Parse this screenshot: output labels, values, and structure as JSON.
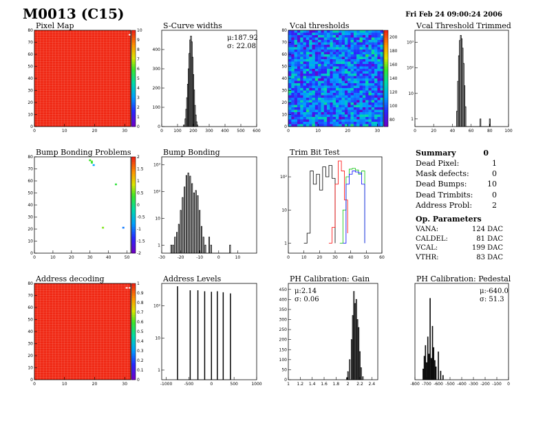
{
  "header": {
    "title": "M0013 (C15)",
    "date": "Fri Feb 24 09:00:24 2006"
  },
  "colors": {
    "map_red": "#f02c1c",
    "line": "#000000",
    "trim_red": "#ff0000",
    "trim_green": "#00c000",
    "trim_blue": "#0000ff"
  },
  "summary": {
    "title": "Summary",
    "value": "0",
    "rows": [
      {
        "label": "Dead Pixel:",
        "value": "1"
      },
      {
        "label": "Mask defects:",
        "value": "0"
      },
      {
        "label": "Dead Bumps:",
        "value": "10"
      },
      {
        "label": "Dead Trimbits:",
        "value": "0"
      },
      {
        "label": "Address Probl:",
        "value": "2"
      }
    ]
  },
  "op_params": {
    "title": "Op. Parameters",
    "rows": [
      {
        "label": "VANA:",
        "value": "124 DAC"
      },
      {
        "label": "CALDEL:",
        "value": "81 DAC"
      },
      {
        "label": "VCAL:",
        "value": "199 DAC"
      },
      {
        "label": "VTHR:",
        "value": "83 DAC"
      }
    ]
  },
  "chart_data": [
    {
      "id": "pixel-map",
      "type": "heatmap",
      "title": "Pixel Map",
      "xticks": [
        "0",
        "10",
        "20",
        "30"
      ],
      "yticks": [
        "0",
        "10",
        "20",
        "30",
        "40",
        "50",
        "60",
        "70",
        "80"
      ],
      "zticks": [
        "0",
        "1",
        "2",
        "3",
        "4",
        "5",
        "6",
        "7",
        "8",
        "9",
        "10"
      ],
      "xlim": [
        0,
        32
      ],
      "ylim": [
        0,
        80
      ],
      "zlim": [
        0,
        10
      ],
      "uniform_z": 10,
      "special_cells": [
        {
          "x": 32,
          "y": 76,
          "z": 0
        }
      ]
    },
    {
      "id": "scurve-widths",
      "type": "bar",
      "title": "S-Curve widths",
      "stats": [
        "μ:187.92",
        "σ: 22.08"
      ],
      "xticks": [
        "0",
        "100",
        "200",
        "300",
        "400",
        "500",
        "600"
      ],
      "yticks": [
        "0",
        "100",
        "200",
        "300",
        "400"
      ],
      "xlim": [
        0,
        600
      ],
      "ylim": [
        0,
        500
      ],
      "bins": [
        [
          140,
          8
        ],
        [
          150,
          40
        ],
        [
          155,
          90
        ],
        [
          160,
          150
        ],
        [
          165,
          220
        ],
        [
          170,
          300
        ],
        [
          175,
          380
        ],
        [
          180,
          450
        ],
        [
          185,
          470
        ],
        [
          190,
          440
        ],
        [
          195,
          360
        ],
        [
          200,
          270
        ],
        [
          205,
          190
        ],
        [
          210,
          110
        ],
        [
          215,
          60
        ],
        [
          220,
          25
        ],
        [
          225,
          8
        ]
      ]
    },
    {
      "id": "vcal-thresholds",
      "type": "heatmap",
      "title": "Vcal thresholds",
      "xticks": [
        "0",
        "10",
        "20",
        "30"
      ],
      "yticks": [
        "0",
        "10",
        "20",
        "30",
        "40",
        "50",
        "60",
        "70",
        "80"
      ],
      "zticks": [
        "80",
        "100",
        "120",
        "140",
        "160",
        "180",
        "200"
      ],
      "xlim": [
        0,
        32
      ],
      "ylim": [
        0,
        80
      ],
      "zlim": [
        70,
        210
      ],
      "mean_z": 105,
      "special_cells": [
        {
          "x": 32,
          "y": 76,
          "z": 210
        }
      ]
    },
    {
      "id": "vcal-threshold-trimmed",
      "type": "bar",
      "log_y": true,
      "title": "Vcal Threshold Trimmed",
      "xticks": [
        "0",
        "20",
        "40",
        "60",
        "80",
        "100"
      ],
      "yticks": [
        "1",
        "10",
        "10²",
        "10³"
      ],
      "xlim": [
        0,
        100
      ],
      "ylim": [
        0.5,
        3000
      ],
      "bins": [
        [
          45,
          2
        ],
        [
          46,
          30
        ],
        [
          47,
          300
        ],
        [
          48,
          1200
        ],
        [
          49,
          1900
        ],
        [
          50,
          1400
        ],
        [
          51,
          600
        ],
        [
          52,
          150
        ],
        [
          53,
          20
        ],
        [
          54,
          3
        ],
        [
          70,
          1
        ],
        [
          80,
          1
        ]
      ]
    },
    {
      "id": "bump-bonding-problems",
      "type": "heatmap",
      "title": "Bump Bonding Problems",
      "xticks": [
        "0",
        "10",
        "20",
        "30",
        "40",
        "50"
      ],
      "yticks": [
        "0",
        "10",
        "20",
        "30",
        "40",
        "50",
        "60",
        "70",
        "80"
      ],
      "zticks": [
        "-2",
        "-1.5",
        "-1",
        "-0.5",
        "0",
        "0.5",
        "1",
        "1.5",
        "2"
      ],
      "xlim": [
        0,
        52
      ],
      "ylim": [
        0,
        80
      ],
      "zlim": [
        -2,
        2
      ],
      "points": [
        {
          "x": 30,
          "y": 77,
          "z": 0.4
        },
        {
          "x": 31,
          "y": 76,
          "z": 0.5
        },
        {
          "x": 31,
          "y": 75,
          "z": 0.3
        },
        {
          "x": 32,
          "y": 73,
          "z": -0.8
        },
        {
          "x": 44,
          "y": 57,
          "z": 0.3
        },
        {
          "x": 37,
          "y": 21,
          "z": 0.6
        },
        {
          "x": 48,
          "y": 21,
          "z": -1.0
        }
      ]
    },
    {
      "id": "bump-bonding",
      "type": "bar",
      "log_y": true,
      "title": "Bump Bonding",
      "xticks": [
        "-30",
        "-20",
        "-10",
        "0",
        "10"
      ],
      "yticks": [
        "1",
        "10",
        "10²",
        "10³"
      ],
      "xlim": [
        -30,
        20
      ],
      "ylim": [
        0.5,
        2000
      ],
      "bins": [
        [
          -25,
          1
        ],
        [
          -24,
          1
        ],
        [
          -23,
          2
        ],
        [
          -22,
          3
        ],
        [
          -21,
          6
        ],
        [
          -20,
          20
        ],
        [
          -19,
          60
        ],
        [
          -18,
          150
        ],
        [
          -17,
          400
        ],
        [
          -16,
          500
        ],
        [
          -15,
          380
        ],
        [
          -14,
          200
        ],
        [
          -13,
          90
        ],
        [
          -12,
          110
        ],
        [
          -11,
          70
        ],
        [
          -10,
          20
        ],
        [
          -9,
          5
        ],
        [
          -8,
          2
        ],
        [
          -7,
          1
        ],
        [
          -5,
          2
        ],
        [
          -4,
          1
        ],
        [
          6,
          1
        ]
      ]
    },
    {
      "id": "trim-bit-test",
      "type": "line",
      "log_y": true,
      "title": "Trim Bit Test",
      "xticks": [
        "0",
        "10",
        "20",
        "30",
        "40",
        "50",
        "60"
      ],
      "yticks": [
        "1",
        "10",
        "10²"
      ],
      "xlim": [
        0,
        60
      ],
      "ylim": [
        0.5,
        400
      ],
      "series": [
        {
          "color": "#000000",
          "points": [
            [
              10,
              1
            ],
            [
              12,
              2
            ],
            [
              14,
              150
            ],
            [
              16,
              60
            ],
            [
              18,
              120
            ],
            [
              20,
              40
            ],
            [
              22,
              200
            ],
            [
              24,
              100
            ],
            [
              26,
              220
            ],
            [
              28,
              90
            ],
            [
              30,
              1
            ]
          ]
        },
        {
          "color": "#ff0000",
          "points": [
            [
              26,
              1
            ],
            [
              28,
              3
            ],
            [
              30,
              60
            ],
            [
              32,
              300
            ],
            [
              34,
              150
            ],
            [
              36,
              20
            ],
            [
              38,
              2
            ]
          ]
        },
        {
          "color": "#00c000",
          "points": [
            [
              33,
              1
            ],
            [
              35,
              10
            ],
            [
              37,
              100
            ],
            [
              39,
              170
            ],
            [
              41,
              180
            ],
            [
              43,
              160
            ],
            [
              45,
              120
            ],
            [
              47,
              150
            ],
            [
              49,
              1
            ]
          ]
        },
        {
          "color": "#0000ff",
          "points": [
            [
              35,
              1
            ],
            [
              37,
              60
            ],
            [
              39,
              120
            ],
            [
              41,
              150
            ],
            [
              43,
              140
            ],
            [
              45,
              130
            ],
            [
              47,
              60
            ],
            [
              49,
              1
            ]
          ]
        }
      ]
    },
    {
      "id": "address-decoding",
      "type": "heatmap",
      "title": "Address decoding",
      "xticks": [
        "0",
        "10",
        "20",
        "30"
      ],
      "yticks": [
        "0",
        "10",
        "20",
        "30",
        "40",
        "50",
        "60",
        "70",
        "80"
      ],
      "zticks": [
        "0",
        "0.1",
        "0.2",
        "0.3",
        "0.4",
        "0.5",
        "0.6",
        "0.7",
        "0.8",
        "0.9",
        "1"
      ],
      "xlim": [
        0,
        32
      ],
      "ylim": [
        0,
        80
      ],
      "zlim": [
        0,
        1
      ],
      "uniform_z": 1,
      "special_cells": [
        {
          "x": 31,
          "y": 76,
          "z": 0
        },
        {
          "x": 32,
          "y": 76,
          "z": 0
        }
      ]
    },
    {
      "id": "address-levels",
      "type": "bar",
      "log_y": true,
      "title": "Address Levels",
      "xticks": [
        "-1000",
        "-500",
        "0",
        "500",
        "1000"
      ],
      "yticks": [
        "1",
        "10",
        "10²"
      ],
      "xlim": [
        -1100,
        1000
      ],
      "ylim": [
        0.5,
        500
      ],
      "bins": [
        [
          -750,
          400
        ],
        [
          -470,
          300
        ],
        [
          -300,
          300
        ],
        [
          -150,
          280
        ],
        [
          0,
          270
        ],
        [
          130,
          280
        ],
        [
          260,
          260
        ],
        [
          420,
          240
        ]
      ]
    },
    {
      "id": "ph-gain",
      "type": "bar",
      "title": "PH Calibration: Gain",
      "stats": [
        "μ:2.14",
        "σ: 0.06"
      ],
      "xticks": [
        "1",
        "1.2",
        "1.4",
        "1.6",
        "1.8",
        "2",
        "2.2",
        "2.4"
      ],
      "yticks": [
        "0",
        "50",
        "100",
        "150",
        "200",
        "250",
        "300",
        "350",
        "400",
        "450"
      ],
      "xlim": [
        1,
        2.5
      ],
      "ylim": [
        0,
        480
      ],
      "bins": [
        [
          1.98,
          10
        ],
        [
          2.0,
          40
        ],
        [
          2.03,
          100
        ],
        [
          2.06,
          200
        ],
        [
          2.08,
          320
        ],
        [
          2.1,
          440
        ],
        [
          2.12,
          380
        ],
        [
          2.14,
          400
        ],
        [
          2.16,
          300
        ],
        [
          2.18,
          260
        ],
        [
          2.2,
          140
        ],
        [
          2.22,
          60
        ],
        [
          2.25,
          15
        ]
      ]
    },
    {
      "id": "ph-pedestal",
      "type": "bar",
      "title": "PH Calibration: Pedestal",
      "stats": [
        "μ:-640.0",
        "σ: 51.3"
      ],
      "xticks": [
        "-800",
        "-700",
        "-600",
        "-500",
        "-400",
        "-300",
        "-200",
        "-100",
        "0"
      ],
      "xlim": [
        -800,
        0
      ],
      "ylim": [
        0,
        450
      ],
      "bins": [
        [
          -730,
          50
        ],
        [
          -720,
          110
        ],
        [
          -710,
          160
        ],
        [
          -700,
          80
        ],
        [
          -690,
          200
        ],
        [
          -680,
          120
        ],
        [
          -670,
          380
        ],
        [
          -660,
          100
        ],
        [
          -650,
          250
        ],
        [
          -640,
          150
        ],
        [
          -630,
          90
        ],
        [
          -620,
          60
        ],
        [
          -600,
          130
        ],
        [
          -580,
          40
        ],
        [
          -560,
          20
        ]
      ]
    }
  ]
}
